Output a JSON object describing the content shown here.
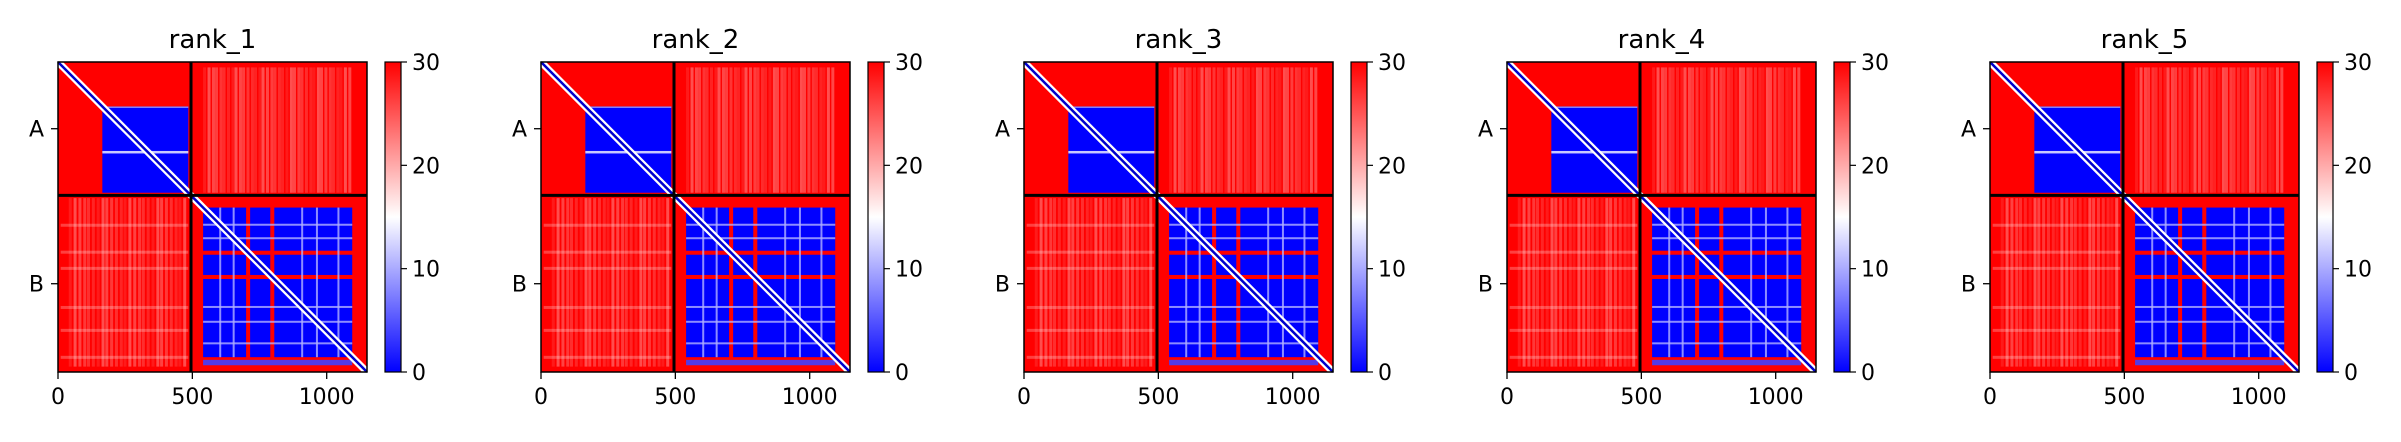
{
  "chart_data": [
    {
      "type": "heatmap",
      "title": "rank_1",
      "chains": [
        "A",
        "B"
      ],
      "xticks": [
        0,
        500,
        1000
      ],
      "xlim": [
        0,
        1150
      ],
      "chain_break": 495,
      "colorbar": {
        "ticks": [
          0,
          10,
          20,
          30
        ],
        "range": [
          0,
          30
        ],
        "colormap": "bwr"
      },
      "colors": {
        "low": "#0000ff",
        "mid": "#ffffff",
        "high": "#ff0000",
        "divider": "#000000"
      }
    },
    {
      "type": "heatmap",
      "title": "rank_2",
      "chains": [
        "A",
        "B"
      ],
      "xticks": [
        0,
        500,
        1000
      ],
      "xlim": [
        0,
        1150
      ],
      "chain_break": 495,
      "colorbar": {
        "ticks": [
          0,
          10,
          20,
          30
        ],
        "range": [
          0,
          30
        ],
        "colormap": "bwr"
      },
      "colors": {
        "low": "#0000ff",
        "mid": "#ffffff",
        "high": "#ff0000",
        "divider": "#000000"
      }
    },
    {
      "type": "heatmap",
      "title": "rank_3",
      "chains": [
        "A",
        "B"
      ],
      "xticks": [
        0,
        500,
        1000
      ],
      "xlim": [
        0,
        1150
      ],
      "chain_break": 495,
      "colorbar": {
        "ticks": [
          0,
          10,
          20,
          30
        ],
        "range": [
          0,
          30
        ],
        "colormap": "bwr"
      },
      "colors": {
        "low": "#0000ff",
        "mid": "#ffffff",
        "high": "#ff0000",
        "divider": "#000000"
      }
    },
    {
      "type": "heatmap",
      "title": "rank_4",
      "chains": [
        "A",
        "B"
      ],
      "xticks": [
        0,
        500,
        1000
      ],
      "xlim": [
        0,
        1150
      ],
      "chain_break": 495,
      "colorbar": {
        "ticks": [
          0,
          10,
          20,
          30
        ],
        "range": [
          0,
          30
        ],
        "colormap": "bwr"
      },
      "colors": {
        "low": "#0000ff",
        "mid": "#ffffff",
        "high": "#ff0000",
        "divider": "#000000"
      }
    },
    {
      "type": "heatmap",
      "title": "rank_5",
      "chains": [
        "A",
        "B"
      ],
      "xticks": [
        0,
        500,
        1000
      ],
      "xlim": [
        0,
        1150
      ],
      "chain_break": 495,
      "colorbar": {
        "ticks": [
          0,
          10,
          20,
          30
        ],
        "range": [
          0,
          30
        ],
        "colormap": "bwr"
      },
      "colors": {
        "low": "#0000ff",
        "mid": "#ffffff",
        "high": "#ff0000",
        "divider": "#000000"
      }
    }
  ]
}
